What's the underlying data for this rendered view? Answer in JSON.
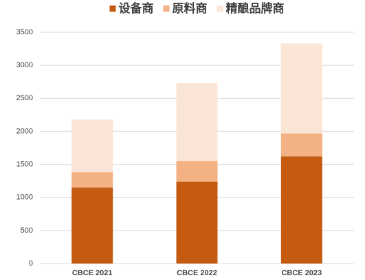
{
  "chart_data": {
    "type": "stacked_bar",
    "categories": [
      "CBCE 2021",
      "CBCE 2022",
      "CBCE 2023"
    ],
    "series": [
      {
        "name": "设备商",
        "color": "#c55a11",
        "values": [
          1150,
          1240,
          1620
        ]
      },
      {
        "name": "原料商",
        "color": "#f4b183",
        "values": [
          230,
          310,
          350
        ]
      },
      {
        "name": "精酿品牌商",
        "color": "#fbe5d6",
        "values": [
          800,
          1180,
          1360
        ]
      }
    ],
    "ylim": [
      0,
      3500
    ],
    "yticks": [
      0,
      500,
      1000,
      1500,
      2000,
      2500,
      3000,
      3500
    ],
    "grid": true,
    "legend": "top"
  }
}
